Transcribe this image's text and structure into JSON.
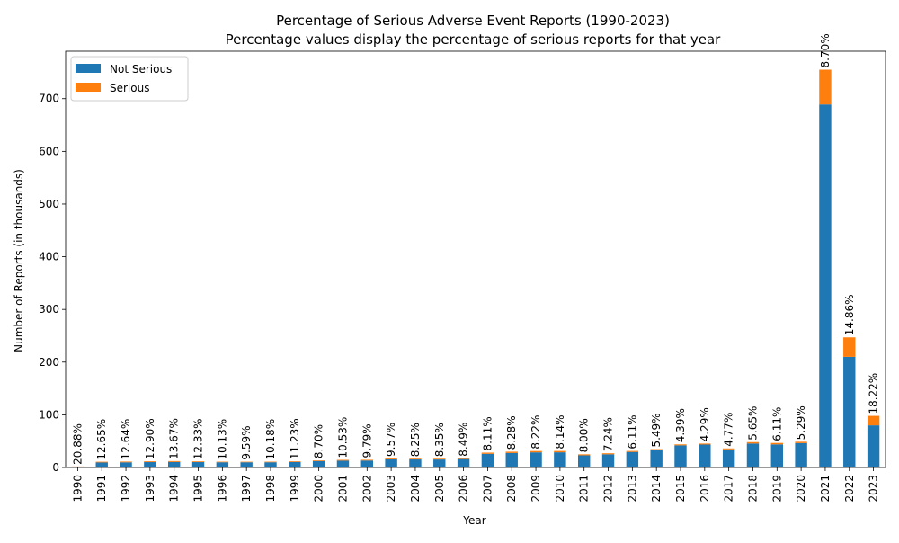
{
  "chart_data": {
    "type": "bar",
    "stacked": true,
    "title": "Percentage of Serious Adverse Event Reports (1990-2023)",
    "subtitle": "Percentage values display the percentage of serious reports for that year",
    "xlabel": "Year",
    "ylabel": "Number of Reports (in thousands)",
    "ylim": [
      0,
      790
    ],
    "yticks": [
      0,
      100,
      200,
      300,
      400,
      500,
      600,
      700
    ],
    "grid": false,
    "legend_position": "top-left",
    "categories": [
      "1990",
      "1991",
      "1992",
      "1993",
      "1994",
      "1995",
      "1996",
      "1997",
      "1998",
      "1999",
      "2000",
      "2001",
      "2002",
      "2003",
      "2004",
      "2005",
      "2006",
      "2007",
      "2008",
      "2009",
      "2010",
      "2011",
      "2012",
      "2013",
      "2014",
      "2015",
      "2016",
      "2017",
      "2018",
      "2019",
      "2020",
      "2021",
      "2022",
      "2023"
    ],
    "series": [
      {
        "name": "Not Serious",
        "color": "#1f77b4",
        "values": [
          1.5,
          9.5,
          9.8,
          10.2,
          10.5,
          10.2,
          9.9,
          9.9,
          9.9,
          10.5,
          12.3,
          13.0,
          13.2,
          15.5,
          15.3,
          15.2,
          16.0,
          25.9,
          27.5,
          28.7,
          28.8,
          23.0,
          25.0,
          29.5,
          33.0,
          42.0,
          43.5,
          34.5,
          45.5,
          43.8,
          46.3,
          689.0,
          210.0,
          80.0
        ]
      },
      {
        "name": "Serious",
        "color": "#ff7f0e",
        "values": [
          0.4,
          1.4,
          1.4,
          1.5,
          1.7,
          1.4,
          1.1,
          1.0,
          1.1,
          1.3,
          1.2,
          1.5,
          1.4,
          1.6,
          1.4,
          1.4,
          1.5,
          2.3,
          2.5,
          2.6,
          2.6,
          2.0,
          2.0,
          1.9,
          1.9,
          1.9,
          1.9,
          1.7,
          2.7,
          2.8,
          2.6,
          66.0,
          37.0,
          18.0
        ]
      }
    ],
    "percent_labels": [
      "20.88%",
      "12.65%",
      "12.64%",
      "12.90%",
      "13.67%",
      "12.33%",
      "10.13%",
      "9.59%",
      "10.18%",
      "11.23%",
      "8.70%",
      "10.53%",
      "9.79%",
      "9.57%",
      "8.25%",
      "8.35%",
      "8.49%",
      "8.11%",
      "8.28%",
      "8.22%",
      "8.14%",
      "8.00%",
      "7.24%",
      "6.11%",
      "5.49%",
      "4.39%",
      "4.29%",
      "4.77%",
      "5.65%",
      "6.11%",
      "5.29%",
      "8.70%",
      "14.86%",
      "18.22%"
    ]
  }
}
